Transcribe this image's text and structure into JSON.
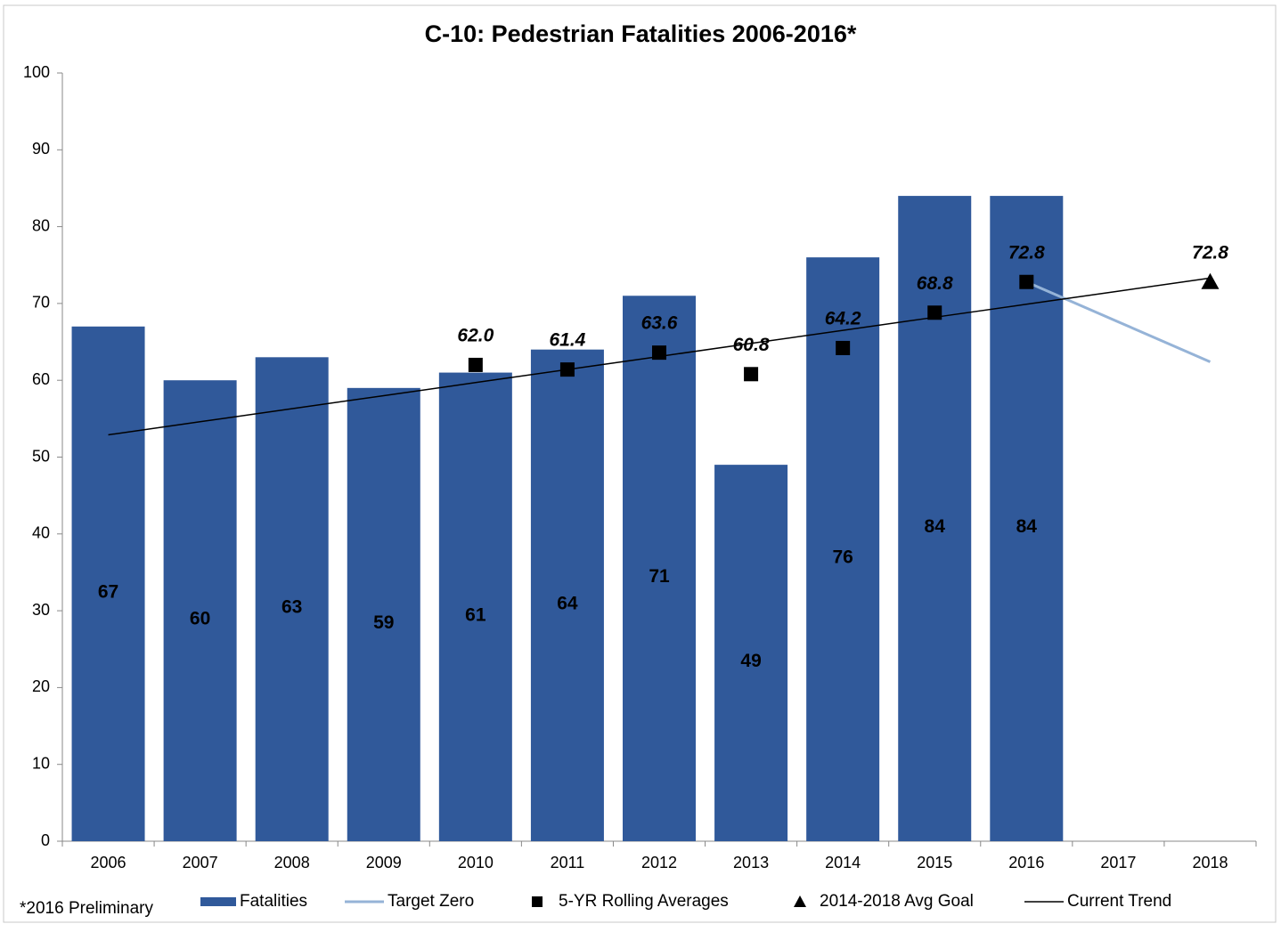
{
  "chart_data": {
    "type": "bar",
    "title": "C-10: Pedestrian Fatalities 2006-2016*",
    "footnote": "*2016 Preliminary",
    "categories": [
      "2006",
      "2007",
      "2008",
      "2009",
      "2010",
      "2011",
      "2012",
      "2013",
      "2014",
      "2015",
      "2016",
      "2017",
      "2018"
    ],
    "ylim": [
      0,
      100
    ],
    "yticks": [
      0,
      10,
      20,
      30,
      40,
      50,
      60,
      70,
      80,
      90,
      100
    ],
    "series": [
      {
        "name": "Fatalities",
        "type": "bar",
        "color": "#30599a",
        "values": [
          67,
          60,
          63,
          59,
          61,
          64,
          71,
          49,
          76,
          84,
          84,
          null,
          null
        ]
      },
      {
        "name": "Target Zero",
        "type": "line",
        "color": "#95b3d7",
        "values": [
          null,
          null,
          null,
          null,
          null,
          null,
          null,
          null,
          null,
          null,
          72.8,
          67.6,
          62.4
        ]
      },
      {
        "name": "5-YR Rolling Averages",
        "type": "scatter",
        "marker": "square",
        "color": "#000000",
        "values": [
          null,
          null,
          null,
          null,
          62,
          61.4,
          63.6,
          60.8,
          64.2,
          68.8,
          72.8,
          null,
          null
        ],
        "value_labels": [
          null,
          null,
          null,
          null,
          "62.0",
          "61.4",
          "63.6",
          "60.8",
          "64.2",
          "68.8",
          "72.8",
          null,
          null
        ]
      },
      {
        "name": "2014-2018 Avg Goal",
        "type": "scatter",
        "marker": "triangle",
        "color": "#000000",
        "values": [
          null,
          null,
          null,
          null,
          null,
          null,
          null,
          null,
          null,
          null,
          null,
          null,
          72.8
        ]
      },
      {
        "name": "Current Trend",
        "type": "line",
        "color": "#000000",
        "values": [
          52.9,
          54.6,
          56.3,
          58.0,
          59.7,
          61.4,
          63.1,
          64.8,
          66.5,
          68.2,
          69.9,
          71.6,
          73.3
        ]
      }
    ]
  }
}
